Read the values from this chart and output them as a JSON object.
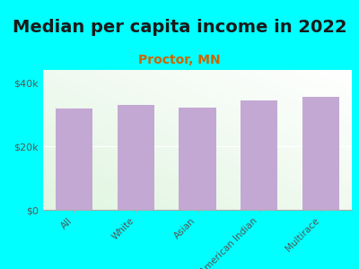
{
  "title": "Median per capita income in 2022",
  "subtitle": "Proctor, MN",
  "categories": [
    "All",
    "White",
    "Asian",
    "American Indian",
    "Multirace"
  ],
  "values": [
    32000,
    33000,
    32200,
    34500,
    35500
  ],
  "bar_color": "#c4a8d4",
  "title_fontsize": 14,
  "subtitle_fontsize": 10,
  "subtitle_color": "#cc6600",
  "tick_label_color": "#555555",
  "background_color": "#00ffff",
  "ylim": [
    0,
    44000
  ],
  "yticks": [
    0,
    20000,
    40000
  ],
  "ytick_labels": [
    "$0",
    "$20k",
    "$40k"
  ]
}
